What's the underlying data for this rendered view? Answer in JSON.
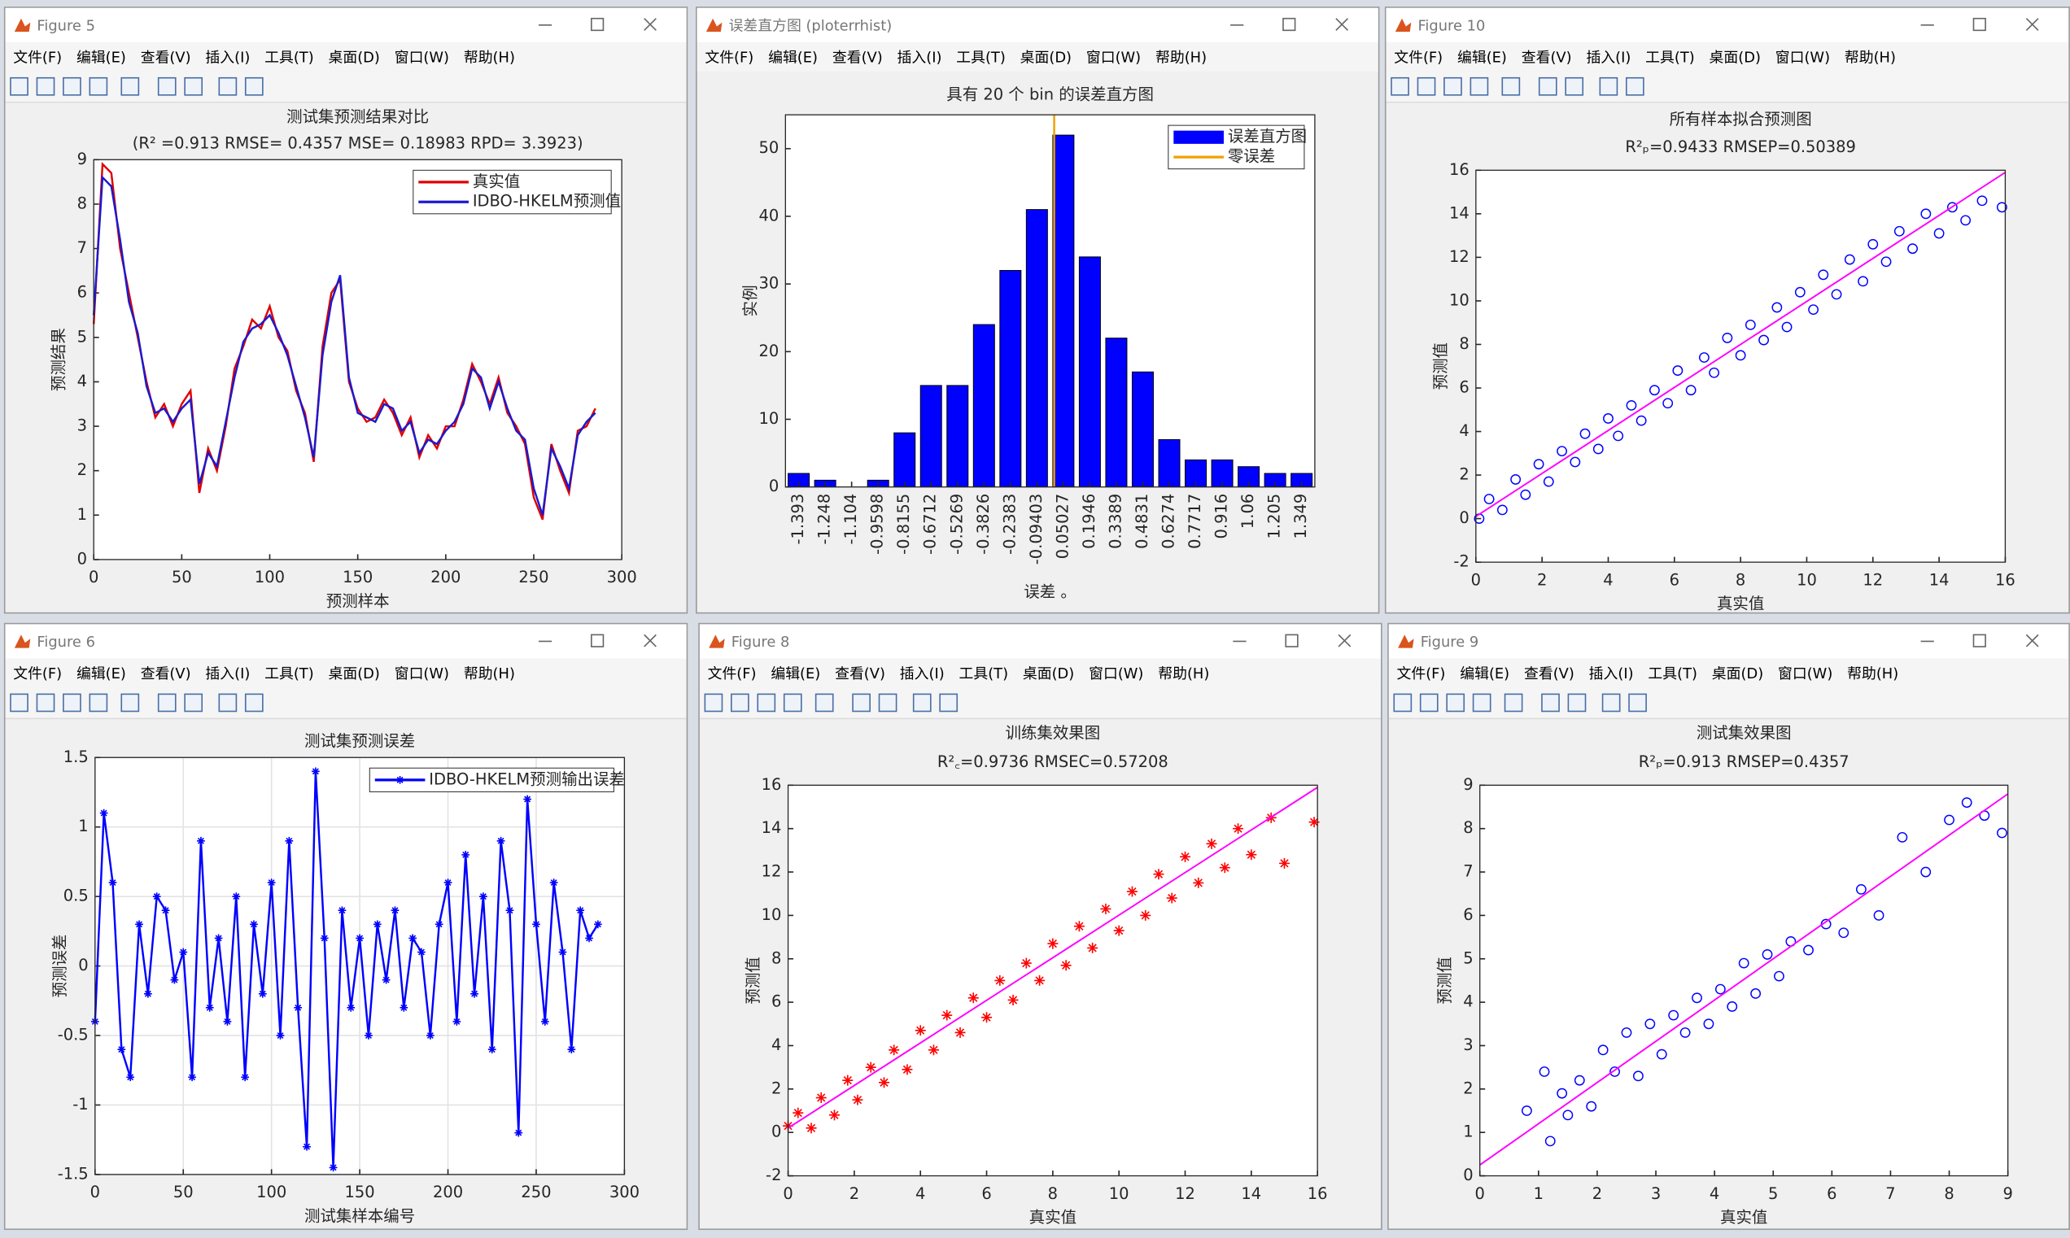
{
  "menu": [
    "文件(F)",
    "编辑(E)",
    "查看(V)",
    "插入(I)",
    "工具(T)",
    "桌面(D)",
    "窗口(W)",
    "帮助(H)"
  ],
  "windows": [
    {
      "title": "Figure 5"
    },
    {
      "title": "误差直方图 (ploterrhist)"
    },
    {
      "title": "Figure 10"
    },
    {
      "title": "Figure 6"
    },
    {
      "title": "Figure 8"
    },
    {
      "title": "Figure 9"
    }
  ],
  "chart_data": [
    {
      "type": "line",
      "title": "测试集预测结果对比",
      "subtitle": "(R² =0.913 RMSE= 0.4357 MSE= 0.18983 RPD= 3.3923)",
      "xlabel": "预测样本",
      "ylabel": "预测结果",
      "x": [
        0,
        5,
        10,
        15,
        20,
        25,
        30,
        35,
        40,
        45,
        50,
        55,
        60,
        65,
        70,
        75,
        80,
        85,
        90,
        95,
        100,
        105,
        110,
        115,
        120,
        125,
        130,
        135,
        140,
        145,
        150,
        155,
        160,
        165,
        170,
        175,
        180,
        185,
        190,
        195,
        200,
        205,
        210,
        215,
        220,
        225,
        230,
        235,
        240,
        245,
        250,
        255,
        260,
        265,
        270,
        275,
        280,
        285
      ],
      "series": [
        {
          "name": "真实值",
          "color": "#e00000",
          "values": [
            5.3,
            8.9,
            8.7,
            7.0,
            6.0,
            5.0,
            4.0,
            3.2,
            3.5,
            3.0,
            3.5,
            3.8,
            1.5,
            2.5,
            2.0,
            3.0,
            4.3,
            4.8,
            5.4,
            5.2,
            5.7,
            5.0,
            4.7,
            3.8,
            3.3,
            2.2,
            4.8,
            6.0,
            6.3,
            4.0,
            3.4,
            3.1,
            3.2,
            3.6,
            3.3,
            2.8,
            3.2,
            2.3,
            2.8,
            2.5,
            3.0,
            3.0,
            3.6,
            4.4,
            4.0,
            3.5,
            4.1,
            3.3,
            3.0,
            2.6,
            1.4,
            0.9,
            2.6,
            2.0,
            1.5,
            2.9,
            3.0,
            3.4
          ]
        },
        {
          "name": "IDBO-HKELM预测值",
          "color": "#1a1ad0",
          "values": [
            5.5,
            8.6,
            8.4,
            7.2,
            5.8,
            5.1,
            3.9,
            3.3,
            3.4,
            3.1,
            3.4,
            3.6,
            1.7,
            2.4,
            2.1,
            3.1,
            4.1,
            4.9,
            5.2,
            5.3,
            5.5,
            5.1,
            4.6,
            3.9,
            3.2,
            2.3,
            4.6,
            5.8,
            6.4,
            4.1,
            3.3,
            3.2,
            3.1,
            3.5,
            3.4,
            2.9,
            3.1,
            2.4,
            2.7,
            2.6,
            2.9,
            3.1,
            3.5,
            4.3,
            4.1,
            3.4,
            4.0,
            3.4,
            2.9,
            2.7,
            1.6,
            1.0,
            2.5,
            2.1,
            1.6,
            2.8,
            3.1,
            3.3
          ]
        }
      ],
      "xlim": [
        0,
        300
      ],
      "xticks": [
        0,
        50,
        100,
        150,
        200,
        250,
        300
      ],
      "ylim": [
        0,
        9
      ],
      "yticks": [
        0,
        1,
        2,
        3,
        4,
        5,
        6,
        7,
        8,
        9
      ],
      "grid": false,
      "legend": "upper right"
    },
    {
      "type": "bar",
      "title": "具有 20 个 bin 的误差直方图",
      "xlabel": "误差 。",
      "ylabel": "实例",
      "categories": [
        -1.393,
        -1.248,
        -1.104,
        -0.9598,
        -0.8155,
        -0.6712,
        -0.5269,
        -0.3826,
        -0.2383,
        -0.09403,
        0.05027,
        0.1946,
        0.3389,
        0.4831,
        0.6274,
        0.7717,
        0.916,
        1.06,
        1.205,
        1.349
      ],
      "series": [
        {
          "name": "误差直方图",
          "color": "#0000ff",
          "values": [
            2,
            1,
            0,
            1,
            8,
            15,
            15,
            24,
            32,
            41,
            52,
            34,
            22,
            17,
            7,
            4,
            4,
            3,
            2,
            2
          ]
        }
      ],
      "reference_line": {
        "name": "零误差",
        "color": "#f0a000",
        "x": 0
      },
      "ylim": [
        0,
        55
      ],
      "yticks": [
        0,
        10,
        20,
        30,
        40,
        50
      ],
      "grid": false,
      "legend": "upper right"
    },
    {
      "type": "scatter",
      "title": "所有样本拟合预测图",
      "subtitle": "R²ₚ=0.9433  RMSEP=0.50389",
      "xlabel": "真实值",
      "ylabel": "预测值",
      "marker": "o",
      "color": "#0000ff",
      "x": [
        0.1,
        0.4,
        0.8,
        1.2,
        1.5,
        1.9,
        2.2,
        2.6,
        3.0,
        3.3,
        3.7,
        4.0,
        4.3,
        4.7,
        5.0,
        5.4,
        5.8,
        6.1,
        6.5,
        6.9,
        7.2,
        7.6,
        8.0,
        8.3,
        8.7,
        9.1,
        9.4,
        9.8,
        10.2,
        10.5,
        10.9,
        11.3,
        11.7,
        12.0,
        12.4,
        12.8,
        13.2,
        13.6,
        14.0,
        14.4,
        14.8,
        15.3,
        15.9
      ],
      "y": [
        0.0,
        0.9,
        0.4,
        1.8,
        1.1,
        2.5,
        1.7,
        3.1,
        2.6,
        3.9,
        3.2,
        4.6,
        3.8,
        5.2,
        4.5,
        5.9,
        5.3,
        6.8,
        5.9,
        7.4,
        6.7,
        8.3,
        7.5,
        8.9,
        8.2,
        9.7,
        8.8,
        10.4,
        9.6,
        11.2,
        10.3,
        11.9,
        10.9,
        12.6,
        11.8,
        13.2,
        12.4,
        14.0,
        13.1,
        14.3,
        13.7,
        14.6,
        14.3
      ],
      "fit": {
        "color": "#ff00ff",
        "x": [
          0,
          16
        ],
        "y": [
          0.1,
          15.9
        ]
      },
      "xlim": [
        0,
        16
      ],
      "xticks": [
        0,
        2,
        4,
        6,
        8,
        10,
        12,
        14,
        16
      ],
      "ylim": [
        -2,
        16
      ],
      "yticks": [
        -2,
        0,
        2,
        4,
        6,
        8,
        10,
        12,
        14,
        16
      ],
      "grid": false
    },
    {
      "type": "line",
      "title": "测试集预测误差",
      "xlabel": "测试集样本编号",
      "ylabel": "预测误差",
      "marker": "*",
      "x": [
        0,
        5,
        10,
        15,
        20,
        25,
        30,
        35,
        40,
        45,
        50,
        55,
        60,
        65,
        70,
        75,
        80,
        85,
        90,
        95,
        100,
        105,
        110,
        115,
        120,
        125,
        130,
        135,
        140,
        145,
        150,
        155,
        160,
        165,
        170,
        175,
        180,
        185,
        190,
        195,
        200,
        205,
        210,
        215,
        220,
        225,
        230,
        235,
        240,
        245,
        250,
        255,
        260,
        265,
        270,
        275,
        280,
        285
      ],
      "series": [
        {
          "name": "IDBO-HKELM预测输出误差",
          "color": "#0000ff",
          "values": [
            -0.4,
            1.1,
            0.6,
            -0.6,
            -0.8,
            0.3,
            -0.2,
            0.5,
            0.4,
            -0.1,
            0.1,
            -0.8,
            0.9,
            -0.3,
            0.2,
            -0.4,
            0.5,
            -0.8,
            0.3,
            -0.2,
            0.6,
            -0.5,
            0.9,
            -0.3,
            -1.3,
            1.4,
            0.2,
            -1.45,
            0.4,
            -0.3,
            0.2,
            -0.5,
            0.3,
            -0.1,
            0.4,
            -0.3,
            0.2,
            0.1,
            -0.5,
            0.3,
            0.6,
            -0.4,
            0.8,
            -0.2,
            0.5,
            -0.6,
            0.9,
            0.4,
            -1.2,
            1.2,
            0.3,
            -0.4,
            0.6,
            0.1,
            -0.6,
            0.4,
            0.2,
            0.3
          ]
        }
      ],
      "xlim": [
        0,
        300
      ],
      "xticks": [
        0,
        50,
        100,
        150,
        200,
        250,
        300
      ],
      "ylim": [
        -1.5,
        1.5
      ],
      "yticks": [
        -1.5,
        -1,
        -0.5,
        0,
        0.5,
        1,
        1.5
      ],
      "grid": true,
      "legend": "upper right"
    },
    {
      "type": "scatter",
      "title": "训练集效果图",
      "subtitle": "R²꜀=0.9736  RMSEC=0.57208",
      "xlabel": "真实值",
      "ylabel": "预测值",
      "marker": "*",
      "color": "#ff0000",
      "x": [
        0.0,
        0.3,
        0.7,
        1.0,
        1.4,
        1.8,
        2.1,
        2.5,
        2.9,
        3.2,
        3.6,
        4.0,
        4.4,
        4.8,
        5.2,
        5.6,
        6.0,
        6.4,
        6.8,
        7.2,
        7.6,
        8.0,
        8.4,
        8.8,
        9.2,
        9.6,
        10.0,
        10.4,
        10.8,
        11.2,
        11.6,
        12.0,
        12.4,
        12.8,
        13.2,
        13.6,
        14.0,
        14.6,
        15.0,
        15.9
      ],
      "y": [
        0.3,
        0.9,
        0.2,
        1.6,
        0.8,
        2.4,
        1.5,
        3.0,
        2.3,
        3.8,
        2.9,
        4.7,
        3.8,
        5.4,
        4.6,
        6.2,
        5.3,
        7.0,
        6.1,
        7.8,
        7.0,
        8.7,
        7.7,
        9.5,
        8.5,
        10.3,
        9.3,
        11.1,
        10.0,
        11.9,
        10.8,
        12.7,
        11.5,
        13.3,
        12.2,
        14.0,
        12.8,
        14.5,
        12.4,
        14.3
      ],
      "fit": {
        "color": "#ff00ff",
        "x": [
          0,
          16
        ],
        "y": [
          0.2,
          15.9
        ]
      },
      "xlim": [
        0,
        16
      ],
      "xticks": [
        0,
        2,
        4,
        6,
        8,
        10,
        12,
        14,
        16
      ],
      "ylim": [
        -2,
        16
      ],
      "yticks": [
        -2,
        0,
        2,
        4,
        6,
        8,
        10,
        12,
        14,
        16
      ],
      "grid": false
    },
    {
      "type": "scatter",
      "title": "测试集效果图",
      "subtitle": "R²ₚ=0.913  RMSEP=0.4357",
      "xlabel": "真实值",
      "ylabel": "预测值",
      "marker": "o",
      "color": "#0000ff",
      "x": [
        0.8,
        1.1,
        1.2,
        1.4,
        1.5,
        1.7,
        1.9,
        2.1,
        2.3,
        2.5,
        2.7,
        2.9,
        3.1,
        3.3,
        3.5,
        3.7,
        3.9,
        4.1,
        4.3,
        4.5,
        4.7,
        4.9,
        5.1,
        5.3,
        5.6,
        5.9,
        6.2,
        6.5,
        6.8,
        7.2,
        7.6,
        8.0,
        8.3,
        8.6,
        8.9
      ],
      "y": [
        1.5,
        2.4,
        0.8,
        1.9,
        1.4,
        2.2,
        1.6,
        2.9,
        2.4,
        3.3,
        2.3,
        3.5,
        2.8,
        3.7,
        3.3,
        4.1,
        3.5,
        4.3,
        3.9,
        4.9,
        4.2,
        5.1,
        4.6,
        5.4,
        5.2,
        5.8,
        5.6,
        6.6,
        6.0,
        7.8,
        7.0,
        8.2,
        8.6,
        8.3,
        7.9
      ],
      "fit": {
        "color": "#ff00ff",
        "x": [
          0,
          9
        ],
        "y": [
          0.25,
          8.8
        ]
      },
      "xlim": [
        0,
        9
      ],
      "xticks": [
        0,
        1,
        2,
        3,
        4,
        5,
        6,
        7,
        8,
        9
      ],
      "ylim": [
        0,
        9
      ],
      "yticks": [
        0,
        1,
        2,
        3,
        4,
        5,
        6,
        7,
        8,
        9
      ],
      "grid": false
    }
  ]
}
